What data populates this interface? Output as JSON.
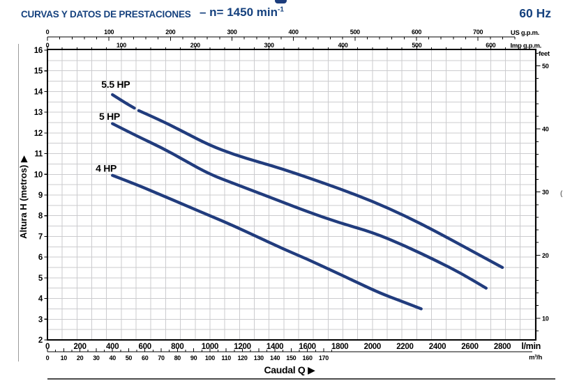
{
  "header": {
    "title": "CURVAS Y DATOS DE PRESTACIONES",
    "rpm_prefix": "– n= 1450 min",
    "rpm_sup": "-1",
    "frequency": "60 Hz"
  },
  "icons": {
    "arrow_right": "▶",
    "cropped_glyph_artifact": "("
  },
  "colors": {
    "navy_text": "#15417e",
    "curve_navy": "#213c7d",
    "grid_gray": "#cbcbce",
    "axis_black": "#000000",
    "page_border_gray": "#9a9a9a",
    "divider_dark": "#4a4a4a"
  },
  "chart_data": {
    "type": "line",
    "title": "",
    "x_label": "Caudal Q",
    "y_label": "Altura H (metros)",
    "xlim_lmin": [
      0,
      3006
    ],
    "ylim_m": [
      2,
      16
    ],
    "grid": "on",
    "x_axis_primary": {
      "unit": "l/min",
      "ticks": [
        0,
        200,
        400,
        600,
        800,
        1000,
        1200,
        1400,
        1600,
        1800,
        2000,
        2200,
        2400,
        2600,
        2800
      ]
    },
    "x_axis_m3h": {
      "unit": "m³/h",
      "ticks": [
        0,
        10,
        20,
        30,
        40,
        50,
        60,
        70,
        80,
        90,
        100,
        110,
        120,
        130,
        140,
        150,
        160,
        170
      ]
    },
    "x_axis_us_gpm": {
      "unit": "US g.p.m.",
      "ticks": [
        0,
        100,
        200,
        300,
        400,
        500,
        600,
        700
      ]
    },
    "x_axis_imp_gpm": {
      "unit": "Imp g.p.m.",
      "ticks": [
        0,
        100,
        200,
        300,
        400,
        500,
        600
      ]
    },
    "y_axis_m": {
      "ticks": [
        16,
        15,
        14,
        13,
        12,
        11,
        10,
        9,
        8,
        7,
        6,
        5,
        4,
        3,
        2
      ]
    },
    "y_axis_feet": {
      "unit": "feet",
      "ticks": [
        50,
        40,
        30,
        20,
        10
      ]
    },
    "series": [
      {
        "name": "5.5 HP",
        "label_pos": [
          420,
          14.35
        ],
        "segments": [
          [
            [
              400,
              13.85
            ],
            [
              470,
              13.5
            ],
            [
              535,
              13.2
            ]
          ],
          [
            [
              562,
              13.08
            ],
            [
              700,
              12.6
            ],
            [
              850,
              12.0
            ],
            [
              1000,
              11.4
            ],
            [
              1150,
              10.95
            ],
            [
              1300,
              10.6
            ],
            [
              1450,
              10.25
            ],
            [
              1600,
              9.85
            ],
            [
              1800,
              9.3
            ],
            [
              2000,
              8.7
            ],
            [
              2200,
              8.0
            ],
            [
              2400,
              7.2
            ],
            [
              2600,
              6.35
            ],
            [
              2800,
              5.5
            ]
          ]
        ]
      },
      {
        "name": "5 HP",
        "label_pos": [
          382,
          12.8
        ],
        "segments": [
          [
            [
              400,
              12.45
            ],
            [
              550,
              11.85
            ],
            [
              700,
              11.3
            ],
            [
              850,
              10.65
            ],
            [
              1000,
              10.0
            ],
            [
              1150,
              9.55
            ],
            [
              1300,
              9.1
            ],
            [
              1450,
              8.65
            ],
            [
              1600,
              8.2
            ],
            [
              1800,
              7.65
            ],
            [
              2000,
              7.2
            ],
            [
              2200,
              6.55
            ],
            [
              2400,
              5.8
            ],
            [
              2550,
              5.2
            ],
            [
              2700,
              4.5
            ]
          ]
        ]
      },
      {
        "name": "4 HP",
        "label_pos": [
          361,
          10.3
        ],
        "segments": [
          [
            [
              400,
              9.95
            ],
            [
              550,
              9.5
            ],
            [
              700,
              9.0
            ],
            [
              850,
              8.5
            ],
            [
              1000,
              8.0
            ],
            [
              1150,
              7.5
            ],
            [
              1300,
              6.95
            ],
            [
              1450,
              6.4
            ],
            [
              1600,
              5.9
            ],
            [
              1750,
              5.35
            ],
            [
              1900,
              4.8
            ],
            [
              2050,
              4.25
            ],
            [
              2175,
              3.88
            ],
            [
              2300,
              3.5
            ]
          ]
        ]
      }
    ]
  }
}
